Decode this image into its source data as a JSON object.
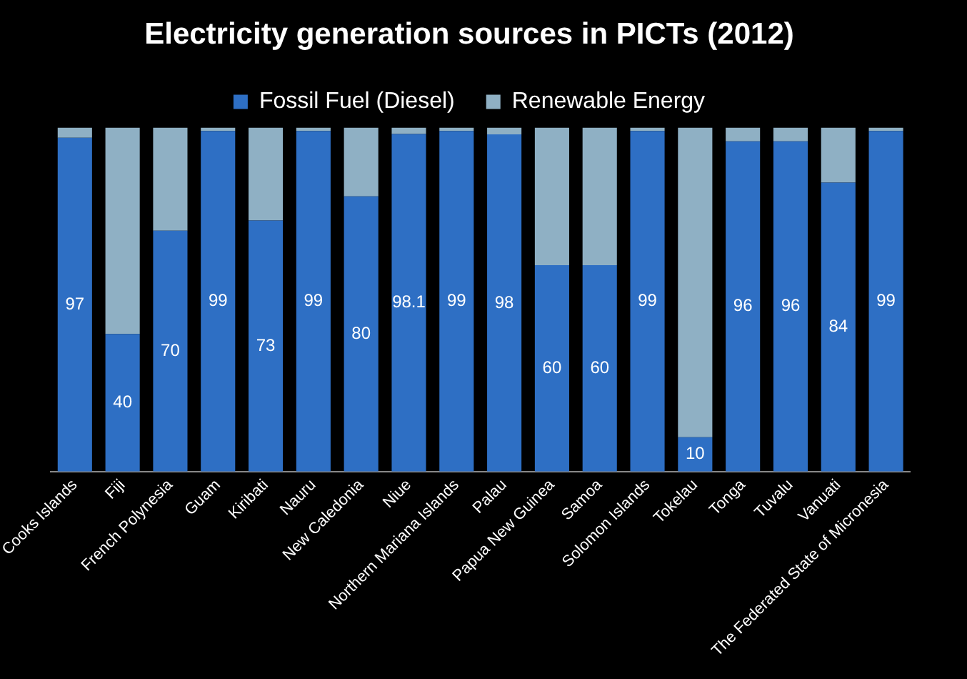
{
  "chart_data": {
    "type": "bar",
    "title": "Electricity generation sources in PICTs (2012)",
    "stacked": true,
    "legend": "top",
    "tick_labels": "x",
    "categories": [
      "Cooks Islands",
      "Fiji",
      "French Polynesia",
      "Guam",
      "Kiribati",
      "Nauru",
      "New Caledonia",
      "Niue",
      "Northern Mariana Islands",
      "Palau",
      "Papua New Guinea",
      "Samoa",
      "Solomon Islands",
      "Tokelau",
      "Tonga",
      "Tuvalu",
      "Vanuati",
      "The Federated State of Micronesia"
    ],
    "series": [
      {
        "name": "Fossil Fuel (Diesel)",
        "color": "#2e6fc4",
        "values": [
          97,
          40,
          70,
          99,
          73,
          99,
          80,
          98.1,
          99,
          98,
          60,
          60,
          99,
          10,
          96,
          96,
          84,
          99
        ],
        "value_labels": [
          "97",
          "40",
          "70",
          "99",
          "73",
          "99",
          "80",
          "98.1",
          "99",
          "98",
          "60",
          "60",
          "99",
          "10",
          "96",
          "96",
          "84",
          "99"
        ]
      },
      {
        "name": "Renewable Energy",
        "color": "#8fb0c4",
        "values": [
          3,
          60,
          30,
          1,
          27,
          1,
          20,
          1.9,
          1,
          2,
          40,
          40,
          1,
          90,
          4,
          4,
          16,
          1
        ]
      }
    ]
  }
}
